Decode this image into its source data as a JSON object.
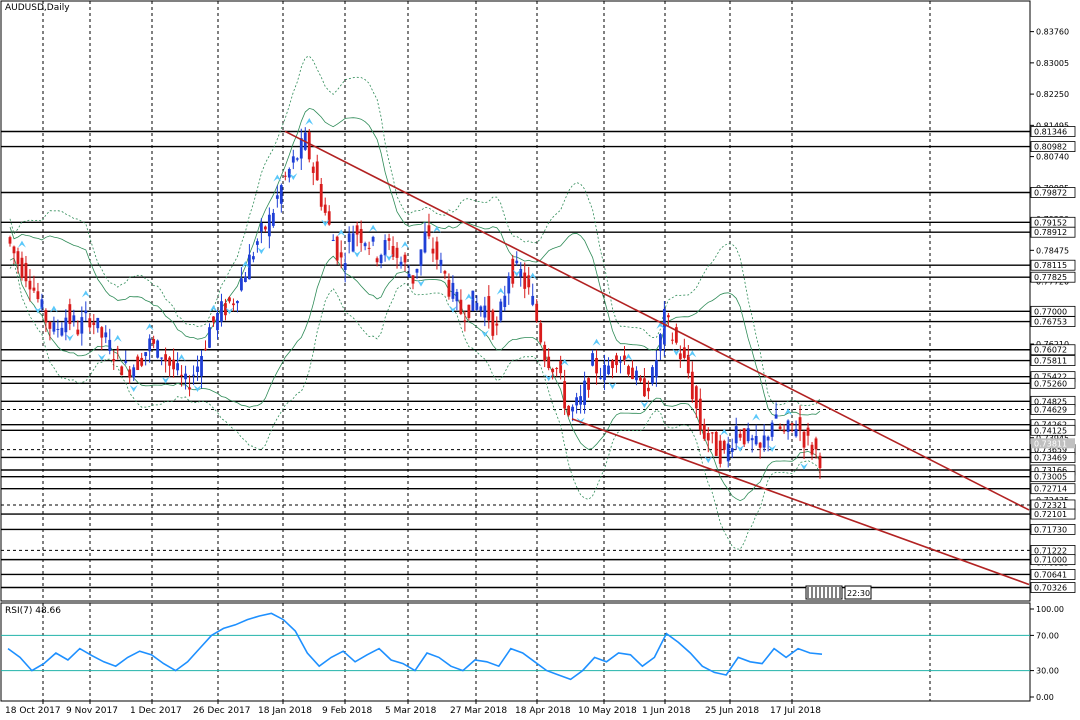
{
  "colors": {
    "background": "#ffffff",
    "bull_candle": "#1f3fd6",
    "bear_candle": "#d81b1b",
    "trendline": "#b22222",
    "bollinger": "#2e8b57",
    "rsi_line": "#1e90ff",
    "rsi_level": "#20b2aa",
    "arrow": "#5ac8fa"
  },
  "chart_data": [
    {
      "type": "candlestick",
      "title": "AUDUSD,Daily",
      "ylim": [
        0.7,
        0.845
      ],
      "price_ticks": [
        0.8376,
        0.83005,
        0.8225,
        0.81495,
        0.8074,
        0.79985,
        0.7923,
        0.78475,
        0.7772,
        0.76965,
        0.7621,
        0.75455,
        0.747,
        0.73945,
        0.7319,
        0.72435,
        0.7168,
        0.70925
      ],
      "levels": [
        {
          "value": 0.81346,
          "style": "solid"
        },
        {
          "value": 0.80982,
          "style": "solid"
        },
        {
          "value": 0.79872,
          "style": "solid"
        },
        {
          "value": 0.79152,
          "style": "solid"
        },
        {
          "value": 0.78912,
          "style": "solid"
        },
        {
          "value": 0.78115,
          "style": "solid"
        },
        {
          "value": 0.77825,
          "style": "solid"
        },
        {
          "value": 0.77,
          "style": "solid"
        },
        {
          "value": 0.76753,
          "style": "solid"
        },
        {
          "value": 0.76072,
          "style": "solid"
        },
        {
          "value": 0.75811,
          "style": "solid"
        },
        {
          "value": 0.75422,
          "style": "solid"
        },
        {
          "value": 0.7526,
          "style": "solid"
        },
        {
          "value": 0.74825,
          "style": "solid"
        },
        {
          "value": 0.74629,
          "style": "dashed"
        },
        {
          "value": 0.74262,
          "style": "solid"
        },
        {
          "value": 0.74125,
          "style": "solid"
        },
        {
          "value": 0.73659,
          "style": "dashed"
        },
        {
          "value": 0.73469,
          "style": "solid"
        },
        {
          "value": 0.73166,
          "style": "solid"
        },
        {
          "value": 0.73005,
          "style": "solid"
        },
        {
          "value": 0.72714,
          "style": "solid"
        },
        {
          "value": 0.72321,
          "style": "dashed"
        },
        {
          "value": 0.72101,
          "style": "solid"
        },
        {
          "value": 0.7173,
          "style": "solid"
        },
        {
          "value": 0.71222,
          "style": "dashed"
        },
        {
          "value": 0.71,
          "style": "solid"
        },
        {
          "value": 0.70641,
          "style": "solid"
        },
        {
          "value": 0.70326,
          "style": "solid"
        }
      ],
      "trendlines": [
        {
          "from": [
            "18 Jan 2018",
            0.8135
          ],
          "to": [
            "off-chart",
            0.722
          ]
        },
        {
          "from": [
            "18 Apr 2018",
            0.744
          ],
          "to": [
            "off-chart",
            0.704
          ]
        }
      ],
      "x_labels": [
        "18 Oct 2017",
        "9 Nov 2017",
        "1 Dec 2017",
        "26 Dec 2017",
        "18 Jan 2018",
        "9 Feb 2018",
        "5 Mar 2018",
        "27 Mar 2018",
        "18 Apr 2018",
        "10 May 2018",
        "1 Jun 2018",
        "25 Jun 2018",
        "17 Jul 2018"
      ],
      "close_path": [
        0.788,
        0.782,
        0.778,
        0.77,
        0.765,
        0.769,
        0.766,
        0.769,
        0.764,
        0.76,
        0.756,
        0.758,
        0.762,
        0.76,
        0.756,
        0.752,
        0.757,
        0.766,
        0.77,
        0.773,
        0.78,
        0.787,
        0.792,
        0.8,
        0.806,
        0.811,
        0.801,
        0.79,
        0.782,
        0.79,
        0.788,
        0.784,
        0.786,
        0.782,
        0.778,
        0.788,
        0.783,
        0.776,
        0.77,
        0.772,
        0.771,
        0.765,
        0.78,
        0.779,
        0.772,
        0.76,
        0.756,
        0.745,
        0.748,
        0.757,
        0.755,
        0.76,
        0.757,
        0.751,
        0.754,
        0.768,
        0.762,
        0.755,
        0.742,
        0.738,
        0.735,
        0.742,
        0.739,
        0.736,
        0.744,
        0.74,
        0.743,
        0.738,
        0.735
      ],
      "price_tag": 0.73811,
      "time_label": "22:30"
    },
    {
      "type": "line",
      "title": "RSI(7) 48.66",
      "ylim": [
        0,
        100
      ],
      "y_ticks": [
        100.0,
        70.0,
        30.0,
        0.0
      ],
      "levels": [
        70,
        30
      ],
      "values": [
        55,
        45,
        30,
        38,
        50,
        42,
        55,
        47,
        40,
        35,
        45,
        52,
        48,
        38,
        30,
        40,
        55,
        70,
        78,
        82,
        88,
        92,
        95,
        88,
        75,
        50,
        35,
        45,
        52,
        40,
        48,
        55,
        42,
        38,
        30,
        50,
        45,
        35,
        30,
        42,
        40,
        35,
        55,
        50,
        40,
        30,
        25,
        20,
        30,
        45,
        40,
        50,
        48,
        35,
        45,
        72,
        62,
        50,
        35,
        28,
        25,
        45,
        40,
        38,
        55,
        45,
        55,
        50,
        48.66
      ]
    }
  ]
}
